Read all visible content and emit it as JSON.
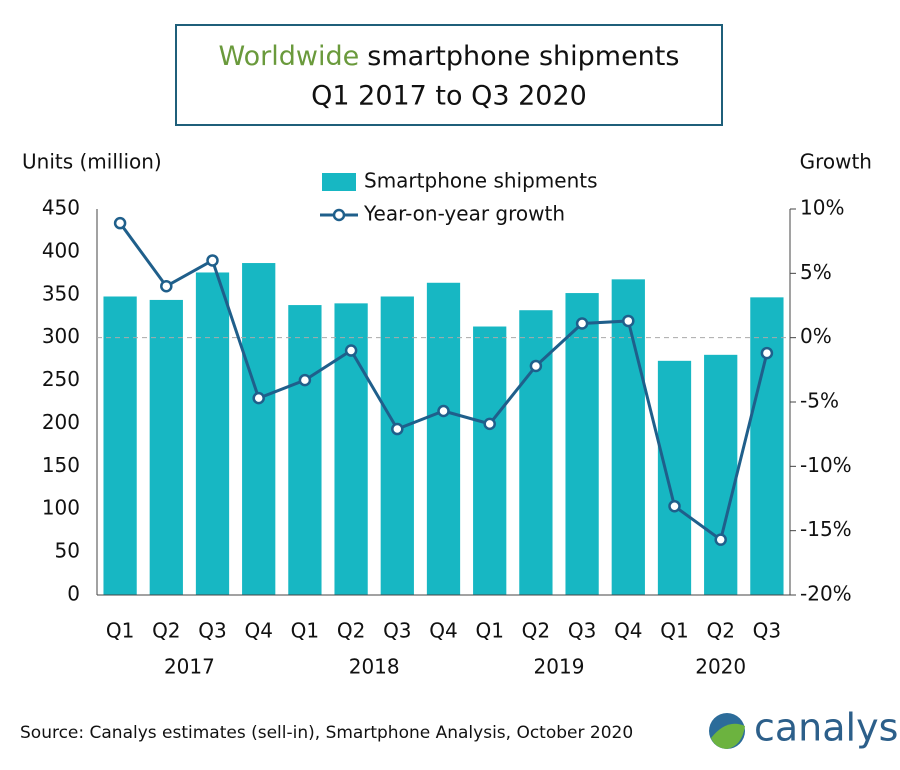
{
  "chart_data": {
    "type": "bar",
    "title_highlight": "Worldwide",
    "title": "smartphone shipments",
    "subtitle": "Q1 2017 to Q3 2020",
    "y_label": "Units (million)",
    "y2_label": "Growth",
    "categories": [
      "Q1",
      "Q2",
      "Q3",
      "Q4",
      "Q1",
      "Q2",
      "Q3",
      "Q4",
      "Q1",
      "Q2",
      "Q3",
      "Q4",
      "Q1",
      "Q2",
      "Q3"
    ],
    "years": [
      "2017",
      "2018",
      "2019",
      "2020"
    ],
    "series": [
      {
        "name": "Smartphone shipments",
        "type": "bar",
        "color": "#17b7c3",
        "axis": "y",
        "values": [
          348,
          344,
          376,
          387,
          338,
          340,
          348,
          364,
          313,
          332,
          352,
          368,
          273,
          280,
          347
        ]
      },
      {
        "name": "Year-on-year growth",
        "type": "line",
        "color": "#1f5f8b",
        "axis": "y2",
        "values": [
          8.9,
          4.0,
          6.0,
          -4.7,
          -3.3,
          -1.0,
          -7.1,
          -5.7,
          -6.7,
          -2.2,
          1.1,
          1.3,
          -13.1,
          -15.7,
          -1.2
        ]
      }
    ],
    "ylim": [
      0,
      450
    ],
    "yticks": [
      0,
      50,
      100,
      150,
      200,
      250,
      300,
      350,
      400,
      450
    ],
    "y2lim": [
      -20,
      10
    ],
    "y2ticks": [
      {
        "value": -20,
        "label": "-20%"
      },
      {
        "value": -15,
        "label": "-15%"
      },
      {
        "value": -10,
        "label": "-10%"
      },
      {
        "value": -5,
        "label": "-5%"
      },
      {
        "value": 0,
        "label": "0%"
      },
      {
        "value": 5,
        "label": "5%"
      },
      {
        "value": 10,
        "label": "10%"
      }
    ],
    "source": "Source: Canalys estimates (sell-in), Smartphone Analysis, October 2020",
    "logo": "canalys"
  }
}
